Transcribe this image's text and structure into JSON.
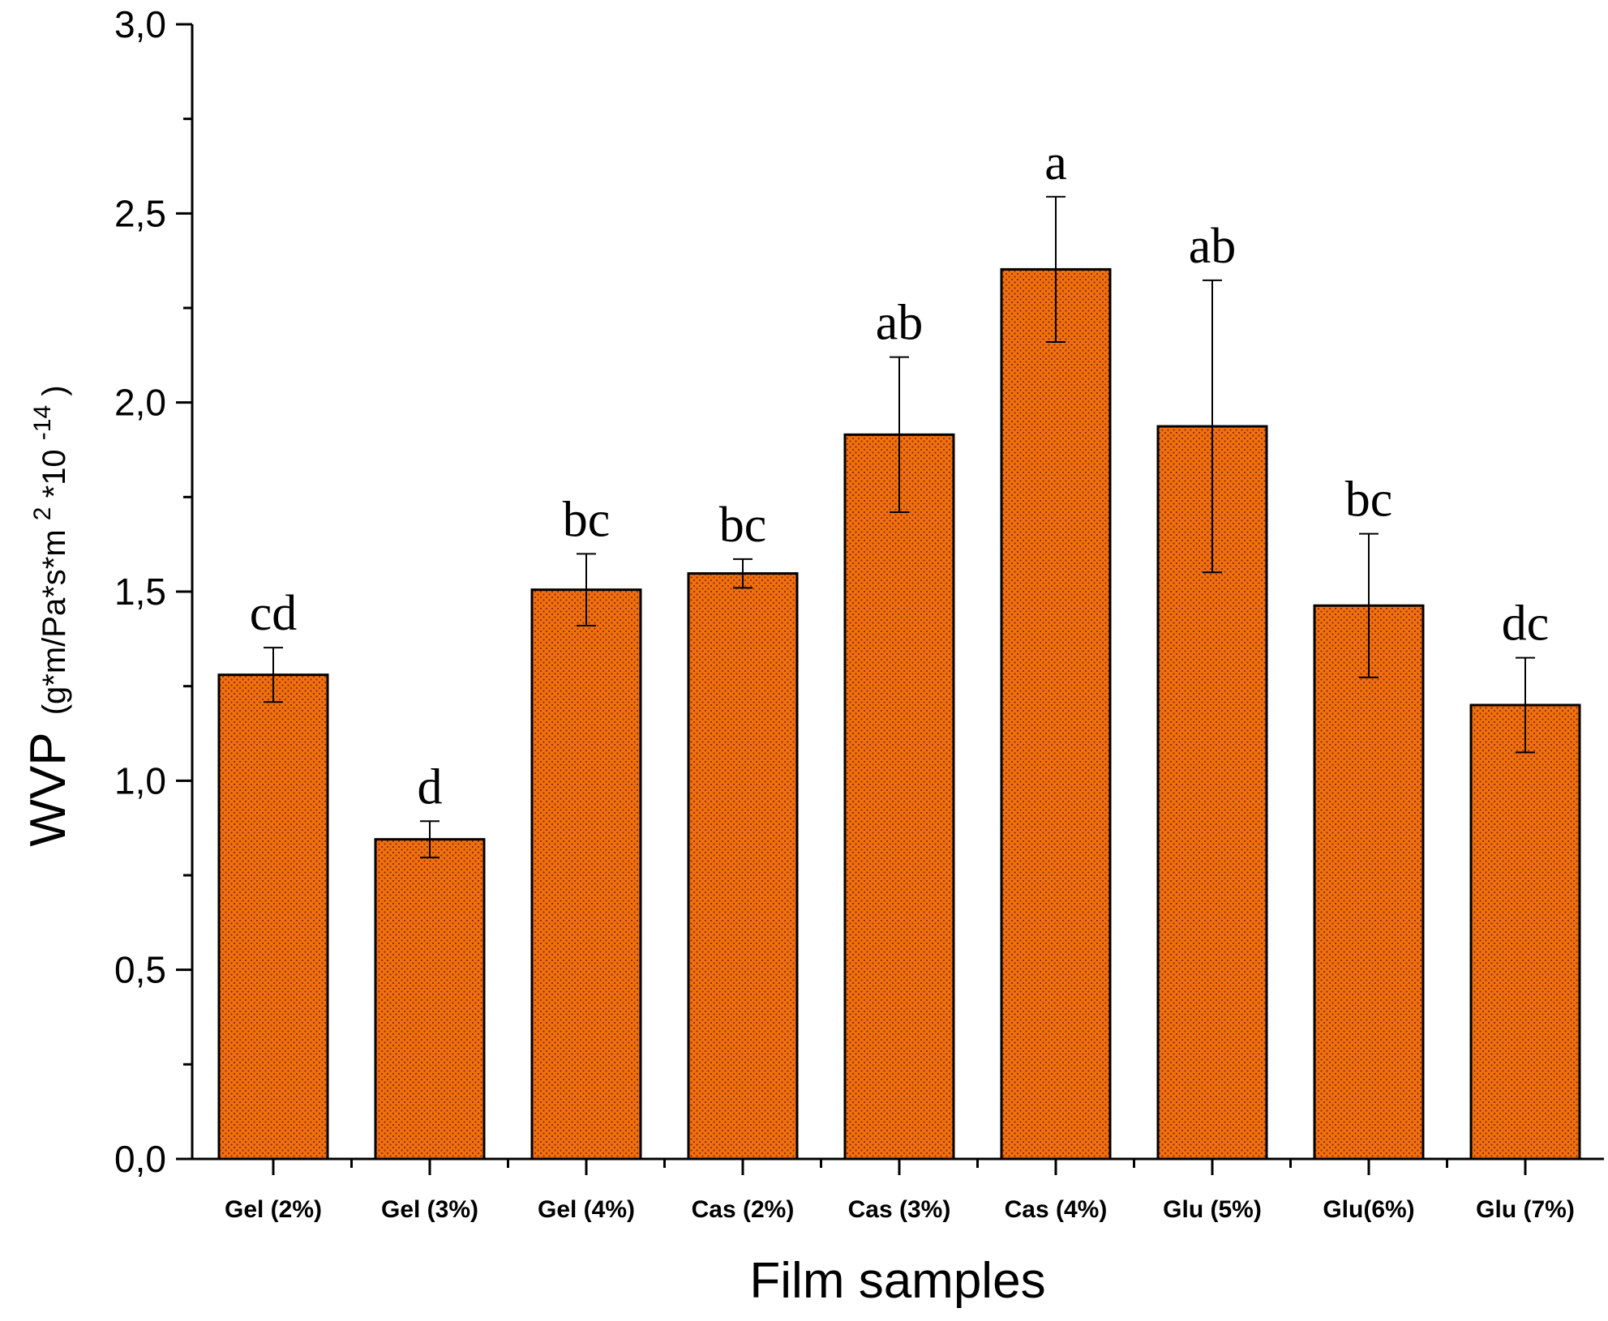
{
  "chart_data": {
    "type": "bar",
    "categories": [
      "Gel (2%)",
      "Gel (3%)",
      "Gel (4%)",
      "Cas (2%)",
      "Cas (3%)",
      "Cas (4%)",
      "Glu (5%)",
      "Glu(6%)",
      "Glu (7%)"
    ],
    "values": [
      1.28,
      0.845,
      1.505,
      1.548,
      1.915,
      2.352,
      1.937,
      1.463,
      1.2
    ],
    "errors": [
      0.072,
      0.048,
      0.095,
      0.038,
      0.205,
      0.192,
      0.386,
      0.19,
      0.125
    ],
    "annotations": [
      "cd",
      "d",
      "bc",
      "bc",
      "ab",
      "a",
      "ab",
      "bc",
      "dc"
    ],
    "ylim": [
      0,
      3.0
    ],
    "yticks": [
      "0,0",
      "0,5",
      "1,0",
      "1,5",
      "2,0",
      "2,5",
      "3,0"
    ],
    "xlabel": "Film samples",
    "ylabel": {
      "main": "WVP",
      "unit_a": "(g*m/Pa*s*m",
      "sup_a": "2",
      "unit_b": "*10",
      "sup_b": "-14",
      "unit_c": ")"
    },
    "bar_color": "#f07010",
    "dot_color": "#8a2c00",
    "grid": false
  }
}
